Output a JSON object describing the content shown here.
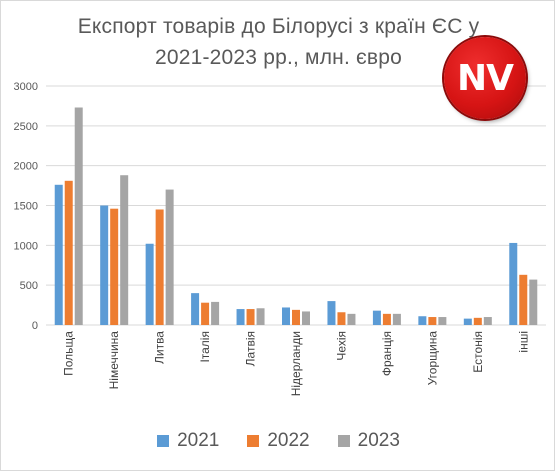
{
  "chart_data": {
    "type": "bar",
    "title": "Експорт товарів до Білорусі з країн ЄС у 2021-2023 рр., млн. євро",
    "title_lines": [
      "Експорт товарів до Білорусі з країн ЄС у",
      "2021-2023 рр., млн. євро"
    ],
    "categories": [
      "Польща",
      "Німеччина",
      "Литва",
      "Італія",
      "Латвія",
      "Нідерланди",
      "Чехія",
      "Франція",
      "Угорщина",
      "Естонія",
      "інші"
    ],
    "series": [
      {
        "name": "2021",
        "color": "#5b9bd5",
        "values": [
          1760,
          1500,
          1020,
          400,
          200,
          220,
          300,
          180,
          110,
          80,
          1030
        ]
      },
      {
        "name": "2022",
        "color": "#ed7d31",
        "values": [
          1810,
          1460,
          1450,
          280,
          200,
          190,
          160,
          140,
          100,
          90,
          630
        ]
      },
      {
        "name": "2023",
        "color": "#a5a5a5",
        "values": [
          2730,
          1880,
          1700,
          290,
          210,
          170,
          140,
          140,
          100,
          100,
          570
        ]
      }
    ],
    "ylim": [
      0,
      3000
    ],
    "yticks": [
      0,
      500,
      1000,
      1500,
      2000,
      2500,
      3000
    ],
    "grid": true,
    "legend": "bottom",
    "xlabel": "",
    "ylabel": ""
  },
  "badge": {
    "text": "NV",
    "color": "#d61414"
  },
  "colors": {
    "gridline": "#d9d9d9",
    "text": "#595959"
  }
}
